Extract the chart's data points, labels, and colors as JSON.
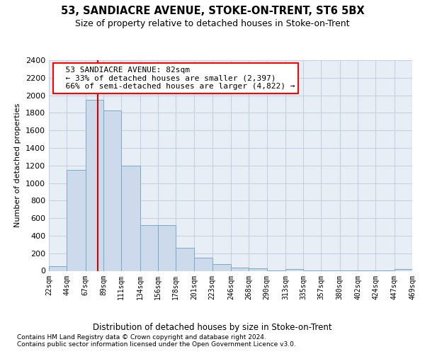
{
  "title1": "53, SANDIACRE AVENUE, STOKE-ON-TRENT, ST6 5BX",
  "title2": "Size of property relative to detached houses in Stoke-on-Trent",
  "xlabel": "Distribution of detached houses by size in Stoke-on-Trent",
  "ylabel": "Number of detached properties",
  "footnote1": "Contains HM Land Registry data © Crown copyright and database right 2024.",
  "footnote2": "Contains public sector information licensed under the Open Government Licence v3.0.",
  "annotation_line1": "53 SANDIACRE AVENUE: 82sqm",
  "annotation_line2": "← 33% of detached houses are smaller (2,397)",
  "annotation_line3": "66% of semi-detached houses are larger (4,822) →",
  "property_size": 82,
  "bar_color": "#ccdaeb",
  "bar_edge_color": "#7aaac8",
  "vline_color": "#cc0000",
  "grid_color": "#c5d0e0",
  "background_color": "#e8eef6",
  "bins": [
    22,
    44,
    67,
    89,
    111,
    134,
    156,
    178,
    201,
    223,
    246,
    268,
    290,
    313,
    335,
    357,
    380,
    402,
    424,
    447,
    469
  ],
  "values": [
    50,
    1150,
    1950,
    1830,
    1200,
    520,
    520,
    265,
    148,
    80,
    38,
    28,
    6,
    18,
    5,
    5,
    4,
    4,
    4,
    20
  ],
  "ylim": [
    0,
    2400
  ],
  "yticks": [
    0,
    200,
    400,
    600,
    800,
    1000,
    1200,
    1400,
    1600,
    1800,
    2000,
    2200,
    2400
  ]
}
